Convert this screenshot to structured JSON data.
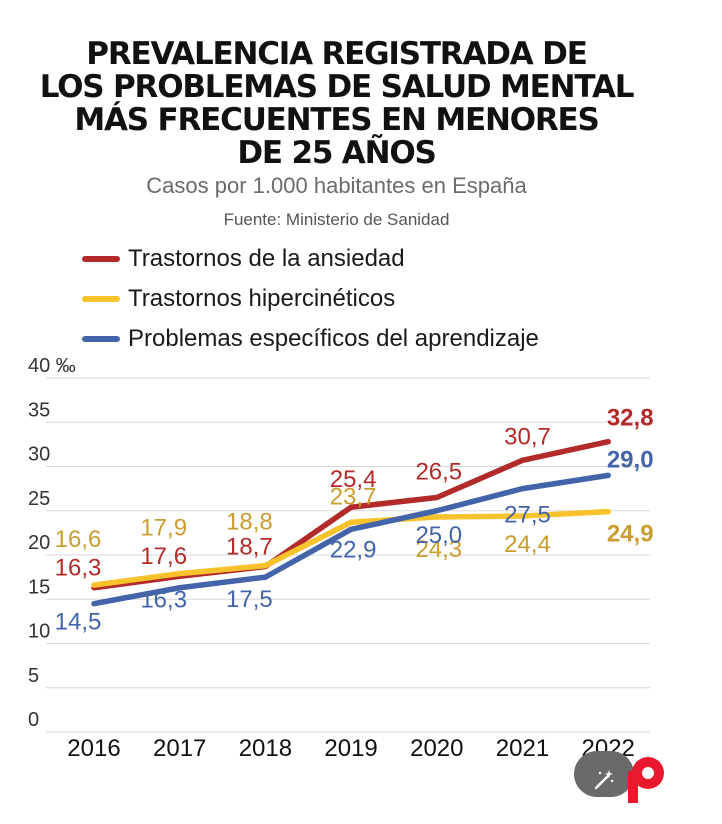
{
  "title_lines": [
    "PREVALENCIA REGISTRADA DE",
    "LOS PROBLEMAS DE SALUD MENTAL",
    "MÁS FRECUENTES EN MENORES",
    "DE 25 AÑOS"
  ],
  "subtitle": "Casos por 1.000 habitantes en España",
  "source": "Fuente: Ministerio de Sanidad",
  "colors": {
    "red": "#b22a2a",
    "yellow": "#f7c22b",
    "blue": "#4464aa",
    "yellow_text": "#c99d30",
    "grid": "#d8d8d8",
    "axis_text": "#333333",
    "badge": "#6a6a6a",
    "logo_red": "#e8192c"
  },
  "icons": [
    "magic-wand-icon",
    "publisher-logo-icon"
  ],
  "chart_data": {
    "type": "line",
    "categories": [
      "2016",
      "2017",
      "2018",
      "2019",
      "2020",
      "2021",
      "2022"
    ],
    "yticks": [
      "40 ‰",
      "35",
      "30",
      "25",
      "20",
      "15",
      "10",
      "5",
      "0"
    ],
    "ylim": [
      0,
      40
    ],
    "grid": true,
    "legend_position": "top-left",
    "series": [
      {
        "name": "Trastornos de la ansiedad",
        "color": "#b22a2a",
        "label_color": "#b22a2a",
        "values": [
          16.3,
          17.6,
          18.7,
          25.4,
          26.5,
          30.7,
          32.8
        ],
        "labels": [
          "16,3",
          "17,6",
          "18,7",
          "25,4",
          "26,5",
          "30,7",
          "32,8"
        ]
      },
      {
        "name": "Trastornos hipercinéticos",
        "color": "#f7c22b",
        "label_color": "#c99d30",
        "values": [
          16.6,
          17.9,
          18.8,
          23.7,
          24.3,
          24.4,
          24.9
        ],
        "labels": [
          "16,6",
          "17,9",
          "18,8",
          "23,7",
          "24,3",
          "24,4",
          "24,9"
        ]
      },
      {
        "name": "Problemas específicos del aprendizaje",
        "color": "#4464aa",
        "label_color": "#4464aa",
        "values": [
          14.5,
          16.3,
          17.5,
          22.9,
          25.0,
          27.5,
          29.0
        ],
        "labels": [
          "14,5",
          "16,3",
          "17,5",
          "22,9",
          "25,0",
          "27,5",
          "29,0"
        ]
      }
    ]
  }
}
